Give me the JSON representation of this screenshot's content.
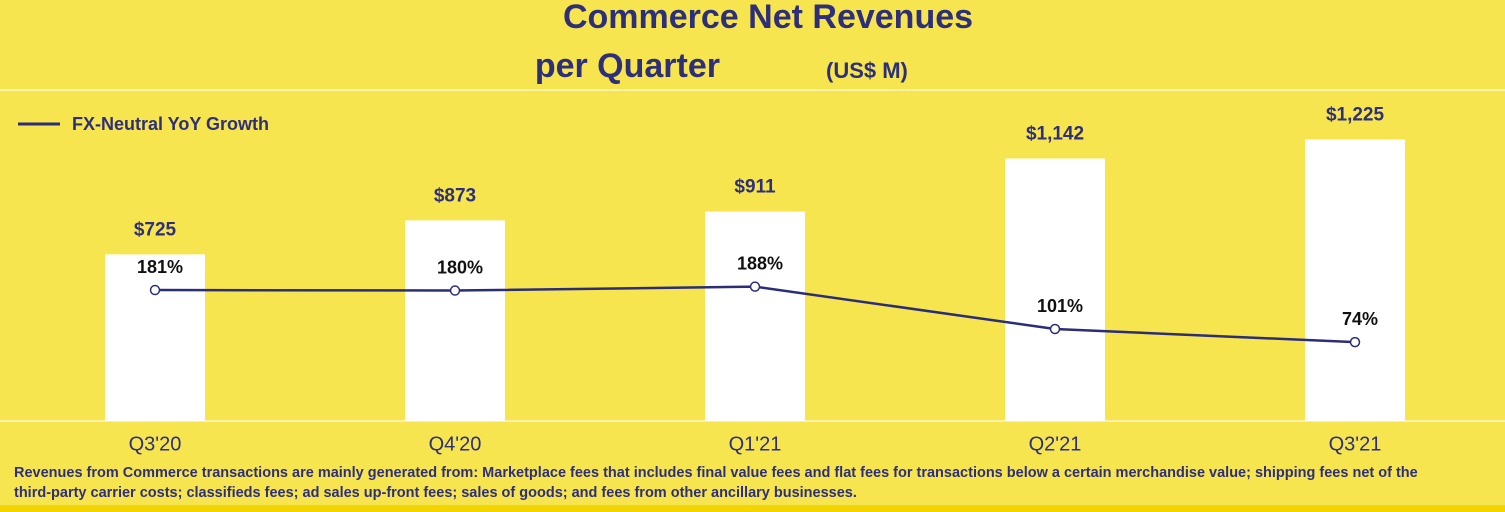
{
  "chart_data": {
    "type": "bar_line",
    "title": "Commerce Net Revenues",
    "subtitle": "per Quarter",
    "unit": "(US$ M)",
    "categories": [
      "Q3'20",
      "Q4'20",
      "Q1'21",
      "Q2'21",
      "Q3'21"
    ],
    "series": [
      {
        "name": "Commerce Net Revenues",
        "type": "bar",
        "color": "#ffffff",
        "values": [
          725,
          873,
          911,
          1142,
          1225
        ],
        "value_labels": [
          "$725",
          "$873",
          "$911",
          "$1,142",
          "$1,225"
        ]
      },
      {
        "name": "FX-Neutral YoY Growth",
        "type": "line",
        "axis": "y2",
        "color": "#2b2d78",
        "values": [
          181,
          180,
          188,
          101,
          74
        ],
        "value_labels": [
          "181%",
          "180%",
          "188%",
          "101%",
          "74%"
        ]
      }
    ],
    "ylim": [
      0,
      1440
    ],
    "y2lim": [
      -88,
      592
    ],
    "legend": "upper left",
    "footnote": [
      "Revenues from Commerce transactions are mainly generated from: Marketplace fees that includes final value fees and flat fees for transactions below a certain merchandise value; shipping fees net of the",
      "third-party carrier costs; classifieds fees; ad sales up-front fees; sales of goods; and fees from other ancillary businesses."
    ]
  }
}
